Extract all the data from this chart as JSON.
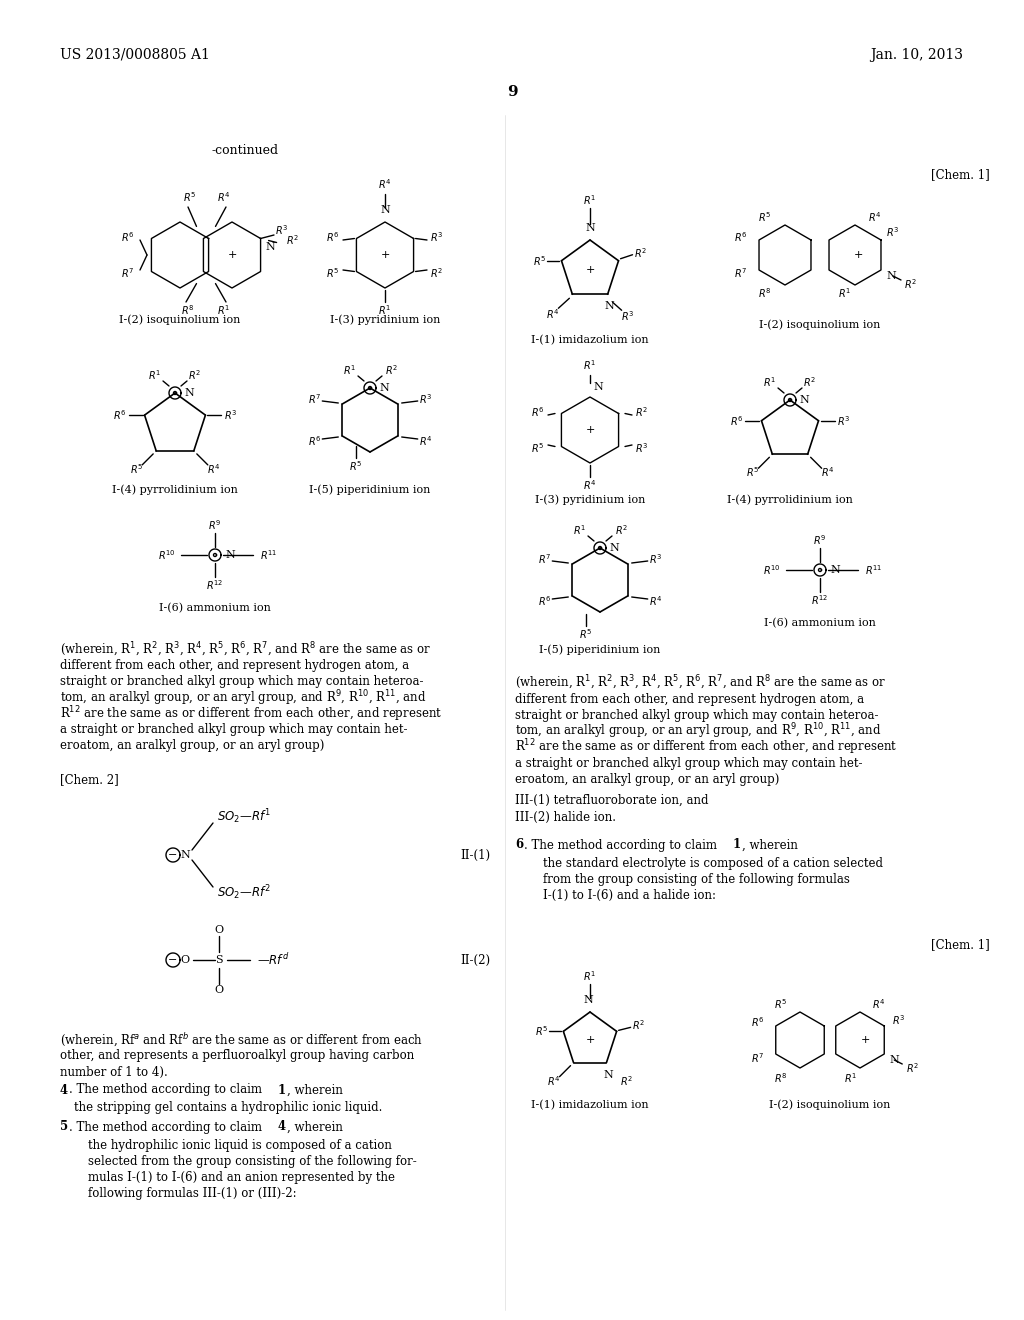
{
  "bg_color": "#ffffff",
  "page_number": "9",
  "header_left": "US 2013/0008805 A1",
  "header_right": "Jan. 10, 2013"
}
